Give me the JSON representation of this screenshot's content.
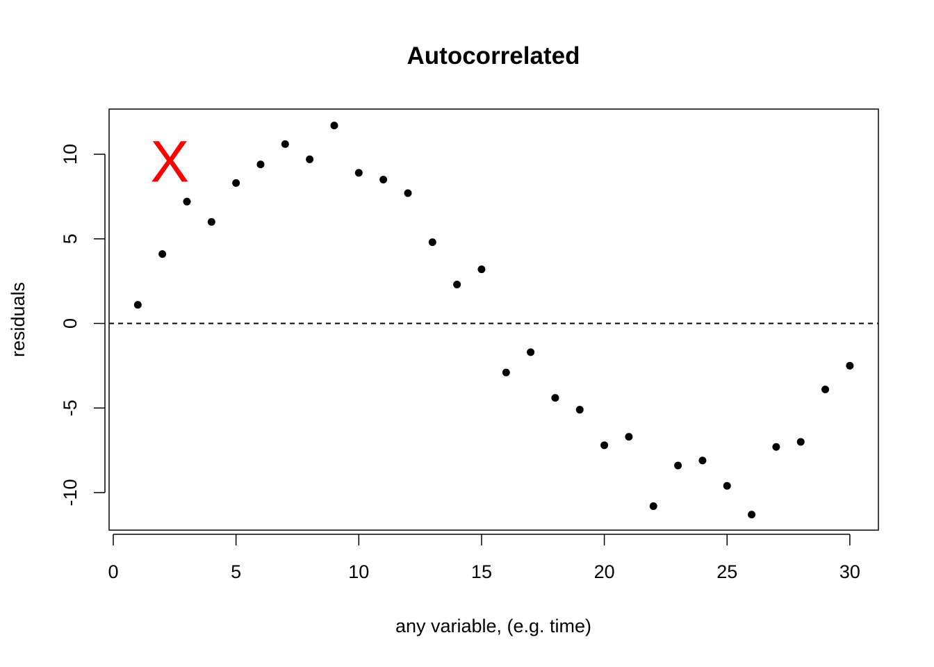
{
  "chart_data": {
    "type": "scatter",
    "title": "Autocorrelated",
    "xlabel": "any variable, (e.g. time)",
    "ylabel": "residuals",
    "xlim": [
      0,
      30
    ],
    "ylim": [
      -12,
      12
    ],
    "x_ticks": [
      "0",
      "5",
      "10",
      "15",
      "20",
      "25",
      "30"
    ],
    "y_ticks": [
      "-10",
      "-5",
      "0",
      "5",
      "10"
    ],
    "grid": false,
    "reference_line": {
      "y": 0,
      "style": "dashed"
    },
    "annotation": {
      "text": "X",
      "x": 2.3,
      "y": 9.6,
      "color": "#ff0000"
    },
    "point_color": "#000000",
    "series": [
      {
        "x": [
          1,
          2,
          3,
          4,
          5,
          6,
          7,
          8,
          9,
          10,
          11,
          12,
          13,
          14,
          15,
          16,
          17,
          18,
          19,
          20,
          21,
          22,
          23,
          24,
          25,
          26,
          27,
          28,
          29,
          30
        ],
        "y": [
          1.1,
          4.1,
          7.2,
          6.0,
          8.3,
          9.4,
          10.6,
          9.7,
          11.7,
          8.9,
          8.5,
          7.7,
          4.8,
          2.3,
          3.2,
          -2.9,
          -1.7,
          -4.4,
          -5.1,
          -7.2,
          -6.7,
          -10.8,
          -8.4,
          -8.1,
          -9.6,
          -11.3,
          -7.3,
          -7.0,
          -3.9,
          -2.5
        ]
      }
    ]
  }
}
